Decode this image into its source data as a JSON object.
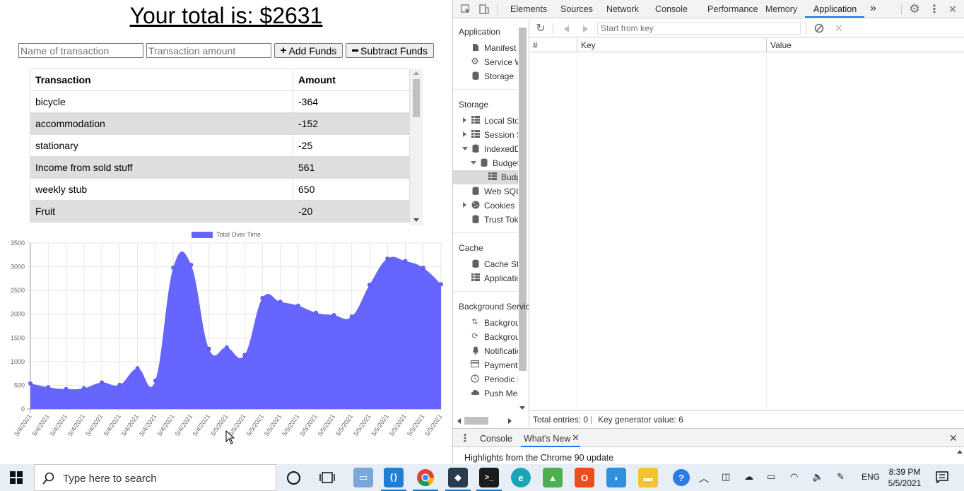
{
  "app": {
    "total_label": "Your total is: $2631",
    "name_placeholder": "Name of transaction",
    "amount_placeholder": "Transaction amount",
    "add_label": "Add Funds",
    "subtract_label": "Subtract Funds",
    "add_icon": "plus-icon",
    "subtract_icon": "minus-icon",
    "table": {
      "headers": [
        "Transaction",
        "Amount"
      ],
      "rows": [
        {
          "name": "bicycle",
          "amount": "-364"
        },
        {
          "name": "accommodation",
          "amount": "-152"
        },
        {
          "name": "stationary",
          "amount": "-25"
        },
        {
          "name": "Income from sold stuff",
          "amount": "561"
        },
        {
          "name": "weekly stub",
          "amount": "650"
        },
        {
          "name": "Fruit",
          "amount": "-20"
        }
      ]
    }
  },
  "chart_data": {
    "type": "area",
    "legend": "Total Over Time",
    "legend_position": "top",
    "color": "#6666ff",
    "categories": [
      "5/4/2021",
      "5/4/2021",
      "5/4/2021",
      "5/4/2021",
      "5/4/2021",
      "5/4/2021",
      "5/4/2021",
      "5/4/2021",
      "5/4/2021",
      "5/4/2021",
      "5/4/2021",
      "5/5/2021",
      "5/5/2021",
      "5/5/2021",
      "5/5/2021",
      "5/5/2021",
      "5/5/2021",
      "5/5/2021",
      "5/5/2021",
      "5/5/2021",
      "5/5/2021",
      "5/5/2021",
      "5/5/2021",
      "5/5/2021"
    ],
    "values": [
      540,
      460,
      420,
      440,
      560,
      510,
      860,
      600,
      2980,
      3040,
      1270,
      1300,
      1140,
      2340,
      2260,
      2180,
      2030,
      1980,
      1950,
      2620,
      3170,
      3120,
      2980,
      2631
    ],
    "yticks": [
      0,
      500,
      1000,
      1500,
      2000,
      2500,
      3000,
      3500
    ],
    "ylim": [
      0,
      3500
    ],
    "grid": true
  },
  "devtools": {
    "tabs": [
      "Elements",
      "Sources",
      "Network",
      "Console",
      "Performance",
      "Memory",
      "Application"
    ],
    "active_tab": "Application",
    "more_tabs": "»",
    "sidebar": {
      "sections": [
        {
          "title": "Application",
          "items": [
            {
              "label": "Manifest",
              "icon": "document-icon"
            },
            {
              "label": "Service Workers",
              "icon": "gear-icon"
            },
            {
              "label": "Storage",
              "icon": "database-icon"
            }
          ]
        },
        {
          "title": "Storage",
          "items": [
            {
              "label": "Local Storage",
              "icon": "grid-icon",
              "expand": "collapsed"
            },
            {
              "label": "Session Storage",
              "icon": "grid-icon",
              "expand": "collapsed"
            },
            {
              "label": "IndexedDB",
              "icon": "database-icon",
              "expand": "expanded"
            },
            {
              "label": "Budget",
              "icon": "database-icon",
              "expand": "expanded",
              "indent": 1
            },
            {
              "label": "BudgetStore",
              "icon": "grid-icon",
              "indent": 2,
              "selected": true
            },
            {
              "label": "Web SQL",
              "icon": "database-icon"
            },
            {
              "label": "Cookies",
              "icon": "cookie-icon",
              "expand": "collapsed"
            },
            {
              "label": "Trust Tokens",
              "icon": "database-icon"
            }
          ]
        },
        {
          "title": "Cache",
          "items": [
            {
              "label": "Cache Storage",
              "icon": "database-icon"
            },
            {
              "label": "Application Cache",
              "icon": "grid-icon"
            }
          ]
        },
        {
          "title": "Background Services",
          "items": [
            {
              "label": "Background Fetch",
              "icon": "arrows-updown-icon"
            },
            {
              "label": "Background Sync",
              "icon": "sync-icon"
            },
            {
              "label": "Notifications",
              "icon": "bell-icon"
            },
            {
              "label": "Payment Handler",
              "icon": "card-icon"
            },
            {
              "label": "Periodic Background Sync",
              "icon": "clock-icon"
            },
            {
              "label": "Push Messaging",
              "icon": "cloud-icon"
            }
          ]
        }
      ]
    },
    "key_placeholder": "Start from key",
    "columns": [
      "#",
      "Key",
      "Value"
    ],
    "footer": {
      "total_entries": "Total entries: 0",
      "key_generator": "Key generator value: 6"
    },
    "drawer": {
      "tabs": [
        "Console",
        "What's New"
      ],
      "active": "What's New",
      "content": "Highlights from the Chrome 90 update"
    }
  },
  "taskbar": {
    "search_placeholder": "Type here to search",
    "language": "ENG",
    "time": "8:39 PM",
    "date": "5/5/2021"
  }
}
